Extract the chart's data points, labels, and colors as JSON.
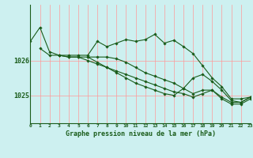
{
  "title": "Graphe pression niveau de la mer (hPa)",
  "background_color": "#cdf0f0",
  "plot_bg_color": "#cdf0f0",
  "grid_color": "#ff9999",
  "line_color": "#1a5c1a",
  "yticks": [
    1025,
    1026
  ],
  "ylim": [
    1024.2,
    1027.6
  ],
  "xlim": [
    0,
    23
  ],
  "line1_x": [
    0,
    1,
    2,
    3,
    4,
    5,
    6,
    7,
    8,
    9,
    10,
    11,
    12,
    13,
    14,
    15,
    16,
    17,
    18,
    19,
    20,
    21,
    22,
    23
  ],
  "line1_y": [
    1026.55,
    1026.95,
    1026.25,
    1026.15,
    1026.15,
    1026.15,
    1026.15,
    1026.55,
    1026.4,
    1026.5,
    1026.6,
    1026.55,
    1026.6,
    1026.75,
    1026.5,
    1026.58,
    1026.4,
    1026.2,
    1025.85,
    1025.5,
    1025.25,
    1024.9,
    1024.9,
    1024.95
  ],
  "line2_x": [
    1,
    2,
    3,
    4,
    5,
    6,
    7,
    8,
    9,
    10,
    11,
    12,
    13,
    14,
    15,
    16,
    17,
    18,
    19,
    20,
    21,
    22,
    23
  ],
  "line2_y": [
    1026.35,
    1026.15,
    1026.15,
    1026.1,
    1026.1,
    1026.1,
    1026.1,
    1026.1,
    1026.05,
    1025.95,
    1025.8,
    1025.65,
    1025.55,
    1025.45,
    1025.35,
    1025.2,
    1025.05,
    1025.15,
    1025.15,
    1024.95,
    1024.8,
    1024.8,
    1024.95
  ],
  "line3_x": [
    3,
    4,
    5,
    6,
    7,
    8,
    9,
    10,
    11,
    12,
    13,
    14,
    15,
    16,
    17,
    18,
    19,
    20,
    21,
    22,
    23
  ],
  "line3_y": [
    1026.15,
    1026.1,
    1026.1,
    1026.0,
    1025.9,
    1025.8,
    1025.7,
    1025.6,
    1025.5,
    1025.4,
    1025.3,
    1025.2,
    1025.1,
    1025.05,
    1024.95,
    1025.05,
    1025.15,
    1024.9,
    1024.75,
    1024.75,
    1024.9
  ],
  "line4_x": [
    6,
    7,
    8,
    9,
    10,
    11,
    12,
    13,
    14,
    15,
    16,
    17,
    18,
    19,
    20,
    21,
    22,
    23
  ],
  "line4_y": [
    1026.1,
    1025.95,
    1025.8,
    1025.65,
    1025.5,
    1025.35,
    1025.25,
    1025.15,
    1025.05,
    1025.0,
    1025.2,
    1025.5,
    1025.6,
    1025.4,
    1025.15,
    1024.85,
    1024.8,
    1024.95
  ]
}
